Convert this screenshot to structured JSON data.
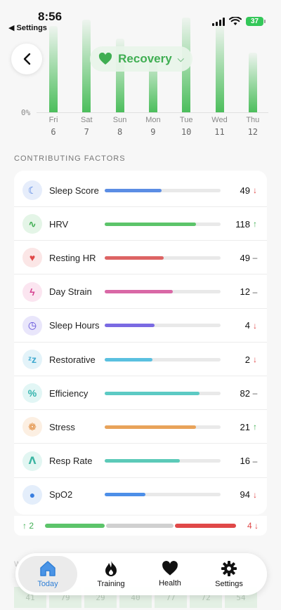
{
  "status_bar": {
    "time": "8:56",
    "back_app": "◀ Settings",
    "battery": "37"
  },
  "header": {
    "metric_title": "Recovery"
  },
  "chart_data": {
    "type": "bar",
    "categories": [
      "Fri 6",
      "Sat 7",
      "Sun 8",
      "Mon 9",
      "Tue 10",
      "Wed 11",
      "Thu 12"
    ],
    "days": [
      "Fri",
      "Sat",
      "Sun",
      "Mon",
      "Tue",
      "Wed",
      "Thu"
    ],
    "dates": [
      "6",
      "7",
      "8",
      "9",
      "10",
      "11",
      "12"
    ],
    "values": [
      82,
      88,
      70,
      60,
      90,
      82,
      57
    ],
    "y_min_label": "0%",
    "ylim": [
      0,
      100
    ],
    "bar_color": "#4cbe5c"
  },
  "factors": {
    "section_title": "CONTRIBUTING FACTORS",
    "items": [
      {
        "label": "Sleep Score",
        "value": "49",
        "trend": "down",
        "trend_symbol": "↓",
        "fraction": 0.49,
        "bar_color": "#5b8de4",
        "icon": "moon-icon",
        "icon_glyph": "☾",
        "icon_color": "#4a7de0",
        "icon_bg": "#e6edfb"
      },
      {
        "label": "HRV",
        "value": "118",
        "trend": "up",
        "trend_symbol": "↑",
        "fraction": 0.79,
        "bar_color": "#5cc46a",
        "icon": "pulse-icon",
        "icon_glyph": "∿",
        "icon_color": "#3fae52",
        "icon_bg": "#e4f5e7"
      },
      {
        "label": "Resting HR",
        "value": "49",
        "trend": "flat",
        "trend_symbol": "–",
        "fraction": 0.51,
        "bar_color": "#dd6464",
        "icon": "heart-icon",
        "icon_glyph": "♥",
        "icon_color": "#e04848",
        "icon_bg": "#fbe6e6"
      },
      {
        "label": "Day Strain",
        "value": "12",
        "trend": "flat",
        "trend_symbol": "–",
        "fraction": 0.59,
        "bar_color": "#d968a6",
        "icon": "bolt-icon",
        "icon_glyph": "ϟ",
        "icon_color": "#d5408f",
        "icon_bg": "#fbe5f0"
      },
      {
        "label": "Sleep Hours",
        "value": "4",
        "trend": "down",
        "trend_symbol": "↓",
        "fraction": 0.43,
        "bar_color": "#7a6ae2",
        "icon": "clock-icon",
        "icon_glyph": "◷",
        "icon_color": "#5b49d8",
        "icon_bg": "#e9e6fb"
      },
      {
        "label": "Restorative",
        "value": "2",
        "trend": "down",
        "trend_symbol": "↓",
        "fraction": 0.41,
        "bar_color": "#5ac0e0",
        "icon": "sleep-zzz-icon",
        "icon_glyph": "ᶻz",
        "icon_color": "#3fa9cf",
        "icon_bg": "#e3f3f9"
      },
      {
        "label": "Efficiency",
        "value": "82",
        "trend": "flat",
        "trend_symbol": "–",
        "fraction": 0.82,
        "bar_color": "#5ccac4",
        "icon": "percent-icon",
        "icon_glyph": "%",
        "icon_color": "#33b3ad",
        "icon_bg": "#e2f6f5"
      },
      {
        "label": "Stress",
        "value": "21",
        "trend": "up",
        "trend_symbol": "↑",
        "fraction": 0.79,
        "bar_color": "#e8a35a",
        "icon": "brain-icon",
        "icon_glyph": "❁",
        "icon_color": "#e08a3a",
        "icon_bg": "#fcefe2"
      },
      {
        "label": "Resp Rate",
        "value": "16",
        "trend": "flat",
        "trend_symbol": "–",
        "fraction": 0.65,
        "bar_color": "#5ccab8",
        "icon": "lungs-icon",
        "icon_glyph": "ᐱ",
        "icon_color": "#3bb5a2",
        "icon_bg": "#e2f6f2"
      },
      {
        "label": "SpO2",
        "value": "94",
        "trend": "down",
        "trend_symbol": "↓",
        "fraction": 0.35,
        "bar_color": "#4d8fe8",
        "icon": "drop-icon",
        "icon_glyph": "●",
        "icon_color": "#3a7fe0",
        "icon_bg": "#e4eefb"
      }
    ]
  },
  "summary": {
    "up_count": "↑ 2",
    "down_count": "4 ↓",
    "up_fraction": 0.32,
    "flat_fraction": 0.36,
    "down_fraction": 0.32
  },
  "ghost_row": {
    "label": "W",
    "cells": [
      "41",
      "79",
      "29",
      "40",
      "77",
      "72",
      "54"
    ]
  },
  "tabs": [
    {
      "label": "Today",
      "icon": "home-icon",
      "active": true
    },
    {
      "label": "Training",
      "icon": "flame-icon",
      "active": false
    },
    {
      "label": "Health",
      "icon": "heart-icon",
      "active": false
    },
    {
      "label": "Settings",
      "icon": "gear-icon",
      "active": false
    }
  ],
  "colors": {
    "accent": "#3fae52",
    "tab_active": "#2f7fd6",
    "down": "#e04848"
  }
}
